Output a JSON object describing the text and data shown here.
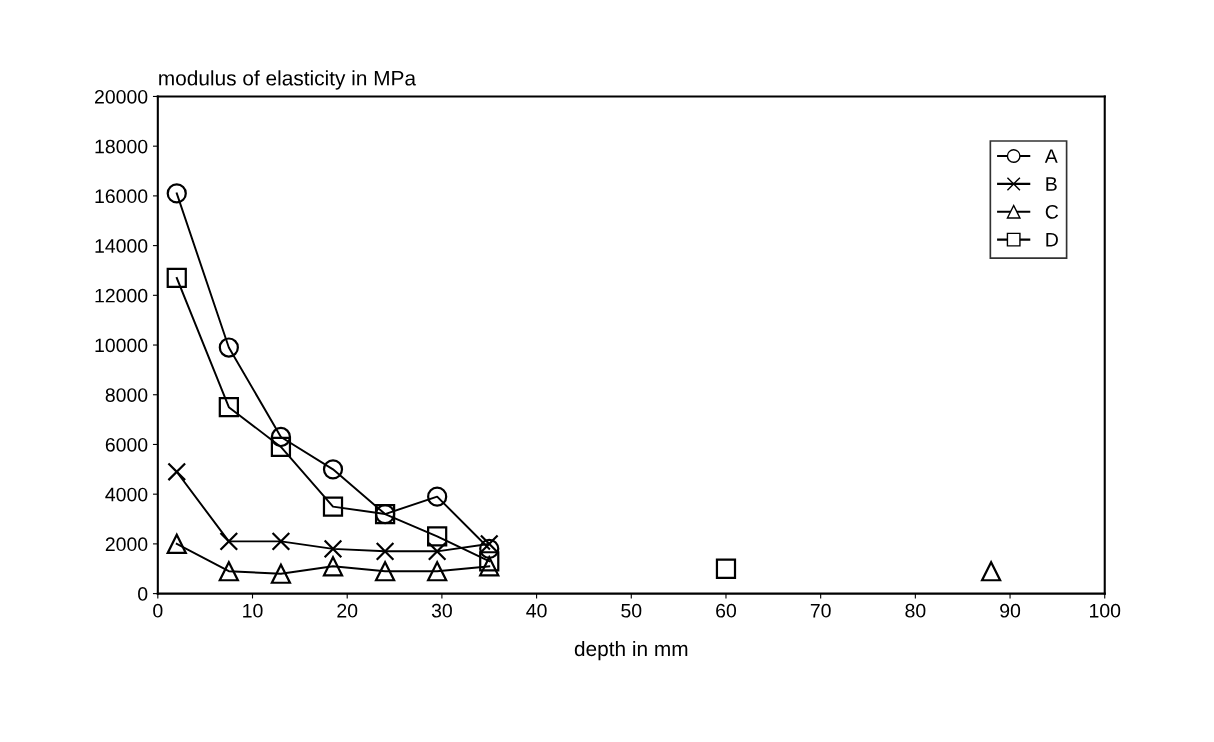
{
  "chart_data": {
    "type": "line",
    "title": "modulus of elasticity in MPa",
    "xlabel": "depth in mm",
    "xlim": [
      0,
      100
    ],
    "xticks": [
      0,
      10,
      20,
      30,
      40,
      50,
      60,
      70,
      80,
      90,
      100
    ],
    "ylim": [
      0,
      20000
    ],
    "yticks": [
      0,
      2000,
      4000,
      6000,
      8000,
      10000,
      12000,
      14000,
      16000,
      18000,
      20000
    ],
    "grid": false,
    "legend": "top right",
    "series": [
      {
        "name": "A",
        "color": "#000000",
        "marker": "circle",
        "x": [
          2,
          7.5,
          13,
          18.5,
          24,
          29.5,
          35
        ],
        "values": [
          16100,
          9900,
          6300,
          5000,
          3200,
          3900,
          1800
        ]
      },
      {
        "name": "B",
        "color": "#000000",
        "marker": "cross",
        "x": [
          2,
          7.5,
          13,
          18.5,
          24,
          29.5,
          35
        ],
        "values": [
          4900,
          2100,
          2100,
          1800,
          1700,
          1700,
          2000
        ]
      },
      {
        "name": "C",
        "color": "#000000",
        "marker": "triangle",
        "x": [
          2,
          7.5,
          13,
          18.5,
          24,
          29.5,
          35
        ],
        "values": [
          2000,
          900,
          800,
          1100,
          900,
          900,
          1100
        ]
      },
      {
        "name": "D",
        "color": "#000000",
        "marker": "square",
        "x": [
          2,
          7.5,
          13,
          18.5,
          24,
          29.5,
          35
        ],
        "values": [
          12700,
          7500,
          5900,
          3500,
          3200,
          2300,
          1300
        ]
      },
      {
        "type": "scatter",
        "color": "#000000",
        "marker": "square",
        "x": [
          60
        ],
        "values": [
          1000
        ]
      },
      {
        "type": "scatter",
        "color": "#000000",
        "marker": "triangle",
        "x": [
          88
        ],
        "values": [
          900
        ]
      }
    ]
  }
}
